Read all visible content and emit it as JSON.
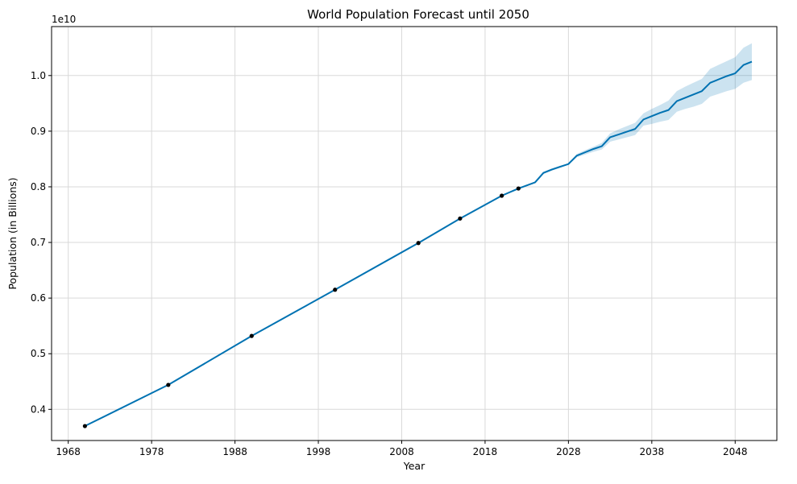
{
  "chart_data": {
    "type": "line",
    "title": "World Population Forecast until 2050",
    "xlabel": "Year",
    "ylabel": "Population (in Billions)",
    "offset_label": "1e10",
    "xlim": [
      1966,
      2053
    ],
    "ylim": [
      0.344,
      1.088
    ],
    "x_ticks": [
      1968,
      1978,
      1988,
      1998,
      2008,
      2018,
      2028,
      2038,
      2048
    ],
    "y_ticks": [
      0.4,
      0.5,
      0.6,
      0.7,
      0.8,
      0.9,
      1.0
    ],
    "y_tick_labels": [
      "0.4",
      "0.5",
      "0.6",
      "0.7",
      "0.8",
      "0.9",
      "1.0"
    ],
    "grid": true,
    "colors": {
      "line": "#0072B2",
      "band": "#0072B2",
      "points": "#000000",
      "grid": "#d9d9d9"
    },
    "observed": {
      "x": [
        1970,
        1980,
        1990,
        2000,
        2010,
        2015,
        2020,
        2022
      ],
      "y": [
        0.37,
        0.444,
        0.532,
        0.615,
        0.699,
        0.743,
        0.784,
        0.797
      ]
    },
    "forecast": {
      "x": [
        1970,
        1980,
        1990,
        2000,
        2010,
        2015,
        2020,
        2022,
        2024,
        2025,
        2026,
        2027,
        2028,
        2029,
        2030,
        2031,
        2032,
        2033,
        2034,
        2035,
        2036,
        2037,
        2038,
        2039,
        2040,
        2041,
        2042,
        2043,
        2044,
        2045,
        2046,
        2047,
        2048,
        2049,
        2050
      ],
      "yhat": [
        0.37,
        0.444,
        0.532,
        0.615,
        0.699,
        0.743,
        0.784,
        0.797,
        0.808,
        0.825,
        0.831,
        0.836,
        0.841,
        0.856,
        0.862,
        0.868,
        0.873,
        0.889,
        0.894,
        0.899,
        0.904,
        0.921,
        0.927,
        0.933,
        0.938,
        0.954,
        0.96,
        0.966,
        0.972,
        0.987,
        0.993,
        0.999,
        1.004,
        1.019,
        1.025
      ],
      "lower": [
        0.37,
        0.444,
        0.532,
        0.615,
        0.699,
        0.743,
        0.784,
        0.797,
        0.807,
        0.823,
        0.829,
        0.834,
        0.84,
        0.853,
        0.858,
        0.863,
        0.867,
        0.881,
        0.885,
        0.889,
        0.893,
        0.91,
        0.913,
        0.917,
        0.92,
        0.935,
        0.94,
        0.944,
        0.949,
        0.962,
        0.967,
        0.972,
        0.976,
        0.987,
        0.992
      ],
      "upper": [
        0.37,
        0.444,
        0.532,
        0.615,
        0.699,
        0.743,
        0.784,
        0.797,
        0.809,
        0.827,
        0.833,
        0.838,
        0.842,
        0.859,
        0.866,
        0.872,
        0.879,
        0.896,
        0.903,
        0.909,
        0.915,
        0.932,
        0.94,
        0.947,
        0.955,
        0.972,
        0.98,
        0.987,
        0.994,
        1.012,
        1.019,
        1.026,
        1.033,
        1.05,
        1.058
      ]
    }
  }
}
